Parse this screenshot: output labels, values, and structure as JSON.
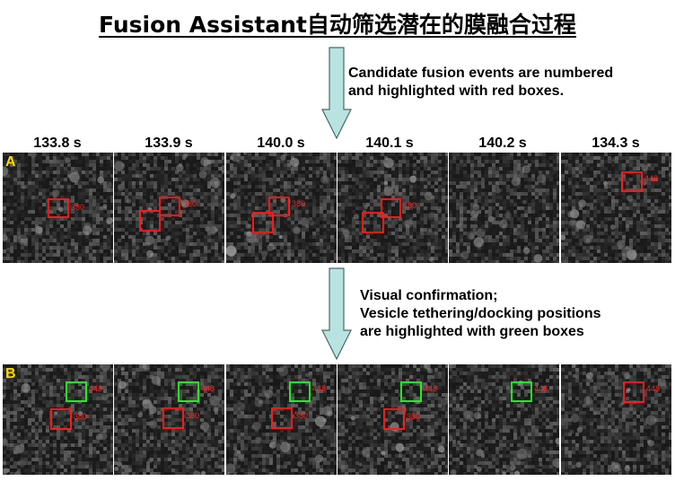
{
  "title": "Fusion Assistant自动筛选潜在的膜融合过程",
  "note1": {
    "lines": [
      "Candidate fusion events are numbered",
      "and highlighted with red boxes."
    ]
  },
  "note2": {
    "lines": [
      "Visual confirmation;",
      "Vesicle tethering/docking positions",
      "are highlighted with green boxes"
    ]
  },
  "panel_letters": {
    "a": "A",
    "b": "B"
  },
  "time_labels": [
    "133.8 s",
    "133.9 s",
    "140.0 s",
    "140.1 s",
    "140.2 s",
    "134.3 s"
  ],
  "box_labels": {
    "red_event": "380",
    "green_event": "448",
    "red_event_2": "448"
  },
  "colors": {
    "candidate_box": "#ff1a1a",
    "docking_box": "#22ee22",
    "panel_letter": "#ffd700",
    "arrow_fill": "#b9e3e0"
  }
}
